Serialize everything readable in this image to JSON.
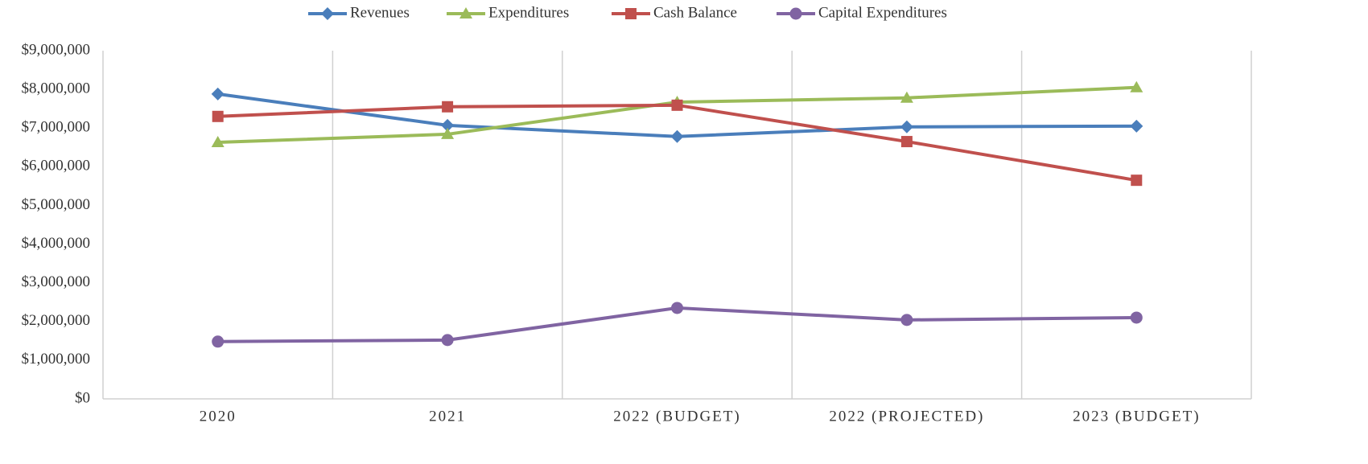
{
  "chart_data": {
    "type": "line",
    "categories": [
      "2020",
      "2021",
      "2022 (BUDGET)",
      "2022 (PROJECTED)",
      "2023 (BUDGET)"
    ],
    "series": [
      {
        "name": "Revenues",
        "color": "#4a7ebb",
        "marker": "diamond",
        "values": [
          7880000,
          7070000,
          6780000,
          7030000,
          7050000
        ]
      },
      {
        "name": "Expenditures",
        "color": "#9bbb59",
        "marker": "triangle",
        "values": [
          6630000,
          6840000,
          7670000,
          7780000,
          8050000
        ]
      },
      {
        "name": "Cash Balance",
        "color": "#c0504d",
        "marker": "square",
        "values": [
          7300000,
          7550000,
          7590000,
          6650000,
          5650000
        ]
      },
      {
        "name": "Capital Expenditures",
        "color": "#8064a2",
        "marker": "circle",
        "values": [
          1480000,
          1520000,
          2350000,
          2040000,
          2100000
        ]
      }
    ],
    "ylim": [
      0,
      9000000
    ],
    "yticks": [
      {
        "value": 0,
        "label": "$0"
      },
      {
        "value": 1000000,
        "label": "$1,000,000"
      },
      {
        "value": 2000000,
        "label": "$2,000,000"
      },
      {
        "value": 3000000,
        "label": "$3,000,000"
      },
      {
        "value": 4000000,
        "label": "$4,000,000"
      },
      {
        "value": 5000000,
        "label": "$5,000,000"
      },
      {
        "value": 6000000,
        "label": "$6,000,000"
      },
      {
        "value": 7000000,
        "label": "$7,000,000"
      },
      {
        "value": 8000000,
        "label": "$8,000,000"
      },
      {
        "value": 9000000,
        "label": "$9,000,000"
      }
    ],
    "grid": false,
    "category_grid": true,
    "legend": "top"
  }
}
